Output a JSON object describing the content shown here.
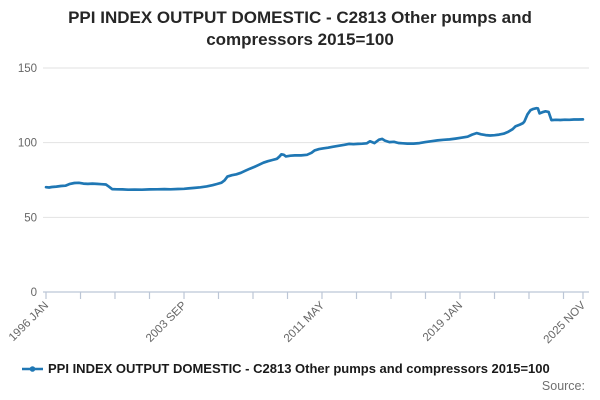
{
  "footer": {
    "source_label": "Source:"
  },
  "chart_data": {
    "type": "line",
    "title": "PPI INDEX OUTPUT DOMESTIC - C2813 Other pumps and compressors 2015=100",
    "xlabel": "",
    "ylabel": "",
    "ylim": [
      0,
      150
    ],
    "yticks": [
      0,
      50,
      100,
      150
    ],
    "xlim": [
      1996.0,
      2025.917
    ],
    "grid": "horizontal",
    "legend_position": "bottom",
    "axis_color": "#bcc6d6",
    "gridline_color": "#e2e2e2",
    "xticks": [
      {
        "t": 1996.0,
        "label": "1996 JAN"
      },
      {
        "t": 1997.917,
        "label": ""
      },
      {
        "t": 1999.833,
        "label": ""
      },
      {
        "t": 2001.75,
        "label": ""
      },
      {
        "t": 2003.667,
        "label": "2003 SEP"
      },
      {
        "t": 2005.583,
        "label": ""
      },
      {
        "t": 2007.5,
        "label": ""
      },
      {
        "t": 2009.417,
        "label": ""
      },
      {
        "t": 2011.333,
        "label": "2011 MAY"
      },
      {
        "t": 2013.25,
        "label": ""
      },
      {
        "t": 2015.167,
        "label": ""
      },
      {
        "t": 2017.083,
        "label": ""
      },
      {
        "t": 2019.0,
        "label": "2019 JAN"
      },
      {
        "t": 2020.917,
        "label": ""
      },
      {
        "t": 2022.833,
        "label": ""
      },
      {
        "t": 2024.75,
        "label": ""
      },
      {
        "t": 2025.833,
        "label": "2025 NOV"
      }
    ],
    "series": [
      {
        "name": "PPI INDEX OUTPUT DOMESTIC - C2813 Other pumps and compressors 2015=100",
        "color": "#1f77b4",
        "points": [
          [
            1996.0,
            70.2
          ],
          [
            1996.17,
            70.0
          ],
          [
            1996.33,
            70.3
          ],
          [
            1996.58,
            70.6
          ],
          [
            1996.83,
            71.0
          ],
          [
            1997.08,
            71.2
          ],
          [
            1997.33,
            72.4
          ],
          [
            1997.58,
            73.0
          ],
          [
            1997.83,
            73.1
          ],
          [
            1998.08,
            72.6
          ],
          [
            1998.33,
            72.4
          ],
          [
            1998.58,
            72.6
          ],
          [
            1998.83,
            72.4
          ],
          [
            1999.08,
            72.2
          ],
          [
            1999.33,
            72.0
          ],
          [
            1999.5,
            70.5
          ],
          [
            1999.67,
            68.9
          ],
          [
            1999.92,
            68.8
          ],
          [
            2000.25,
            68.7
          ],
          [
            2000.58,
            68.5
          ],
          [
            2000.92,
            68.6
          ],
          [
            2001.33,
            68.5
          ],
          [
            2001.75,
            68.7
          ],
          [
            2002.17,
            68.8
          ],
          [
            2002.58,
            68.9
          ],
          [
            2002.92,
            68.8
          ],
          [
            2003.33,
            69.0
          ],
          [
            2003.67,
            69.1
          ],
          [
            2003.92,
            69.4
          ],
          [
            2004.25,
            69.7
          ],
          [
            2004.58,
            70.1
          ],
          [
            2004.92,
            70.7
          ],
          [
            2005.25,
            71.5
          ],
          [
            2005.5,
            72.3
          ],
          [
            2005.75,
            73.2
          ],
          [
            2005.92,
            74.8
          ],
          [
            2006.08,
            77.3
          ],
          [
            2006.33,
            78.2
          ],
          [
            2006.58,
            78.8
          ],
          [
            2006.83,
            79.8
          ],
          [
            2007.08,
            81.2
          ],
          [
            2007.33,
            82.6
          ],
          [
            2007.58,
            83.8
          ],
          [
            2007.83,
            85.2
          ],
          [
            2008.08,
            86.6
          ],
          [
            2008.33,
            87.6
          ],
          [
            2008.58,
            88.4
          ],
          [
            2008.83,
            89.2
          ],
          [
            2008.96,
            90.6
          ],
          [
            2009.08,
            92.2
          ],
          [
            2009.21,
            91.9
          ],
          [
            2009.33,
            90.8
          ],
          [
            2009.58,
            91.3
          ],
          [
            2009.83,
            91.5
          ],
          [
            2010.17,
            91.5
          ],
          [
            2010.5,
            91.9
          ],
          [
            2010.75,
            93.2
          ],
          [
            2010.92,
            94.8
          ],
          [
            2011.17,
            95.7
          ],
          [
            2011.42,
            96.2
          ],
          [
            2011.67,
            96.6
          ],
          [
            2011.92,
            97.2
          ],
          [
            2012.25,
            97.9
          ],
          [
            2012.58,
            98.6
          ],
          [
            2012.83,
            99.2
          ],
          [
            2013.08,
            99.0
          ],
          [
            2013.33,
            99.2
          ],
          [
            2013.58,
            99.3
          ],
          [
            2013.83,
            99.6
          ],
          [
            2014.0,
            100.9
          ],
          [
            2014.25,
            99.7
          ],
          [
            2014.5,
            102.0
          ],
          [
            2014.67,
            102.5
          ],
          [
            2014.83,
            101.4
          ],
          [
            2015.08,
            100.4
          ],
          [
            2015.33,
            100.6
          ],
          [
            2015.58,
            99.8
          ],
          [
            2015.83,
            99.6
          ],
          [
            2016.08,
            99.4
          ],
          [
            2016.42,
            99.4
          ],
          [
            2016.75,
            99.7
          ],
          [
            2017.08,
            100.4
          ],
          [
            2017.42,
            101.0
          ],
          [
            2017.75,
            101.5
          ],
          [
            2018.08,
            101.9
          ],
          [
            2018.42,
            102.2
          ],
          [
            2018.75,
            102.7
          ],
          [
            2019.08,
            103.3
          ],
          [
            2019.42,
            104.0
          ],
          [
            2019.67,
            105.4
          ],
          [
            2019.92,
            106.4
          ],
          [
            2020.17,
            105.6
          ],
          [
            2020.42,
            105.1
          ],
          [
            2020.67,
            104.8
          ],
          [
            2020.92,
            105.0
          ],
          [
            2021.17,
            105.4
          ],
          [
            2021.42,
            106.0
          ],
          [
            2021.67,
            107.2
          ],
          [
            2021.92,
            109.0
          ],
          [
            2022.08,
            110.9
          ],
          [
            2022.33,
            112.1
          ],
          [
            2022.5,
            113.1
          ],
          [
            2022.58,
            114.2
          ],
          [
            2022.75,
            119.0
          ],
          [
            2022.92,
            121.8
          ],
          [
            2023.08,
            122.6
          ],
          [
            2023.25,
            123.1
          ],
          [
            2023.33,
            122.9
          ],
          [
            2023.42,
            119.6
          ],
          [
            2023.58,
            120.4
          ],
          [
            2023.75,
            121.0
          ],
          [
            2023.92,
            120.6
          ],
          [
            2024.08,
            115.1
          ],
          [
            2024.33,
            115.3
          ],
          [
            2024.58,
            115.2
          ],
          [
            2024.83,
            115.4
          ],
          [
            2025.08,
            115.3
          ],
          [
            2025.33,
            115.5
          ],
          [
            2025.58,
            115.5
          ],
          [
            2025.83,
            115.6
          ]
        ]
      }
    ]
  }
}
